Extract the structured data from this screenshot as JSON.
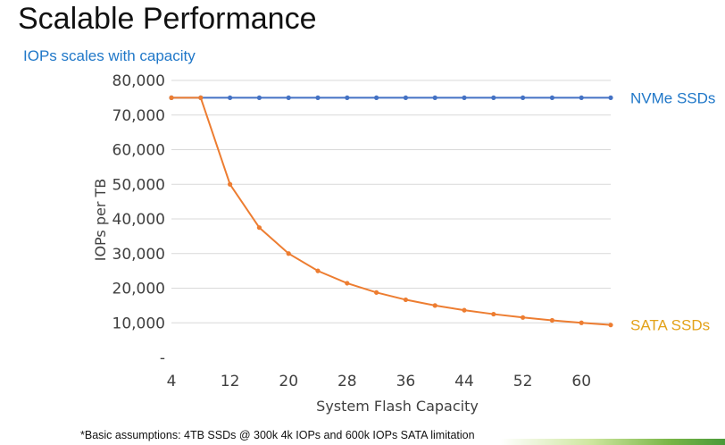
{
  "slide": {
    "title": "Scalable Performance",
    "subtitle": "IOPs scales with capacity",
    "footnote": "*Basic assumptions: 4TB SSDs @ 300k 4k IOPs and 600k IOPs SATA limitation"
  },
  "chart_data": {
    "type": "line",
    "xlabel": "System Flash Capacity",
    "ylabel": "IOPs per TB",
    "xlim": [
      4,
      64
    ],
    "ylim": [
      0,
      80000
    ],
    "x_ticks": [
      4,
      12,
      20,
      28,
      36,
      44,
      52,
      60
    ],
    "y_ticks": [
      {
        "value": 0,
        "label": "-"
      },
      {
        "value": 10000,
        "label": "10,000"
      },
      {
        "value": 20000,
        "label": "20,000"
      },
      {
        "value": 30000,
        "label": "30,000"
      },
      {
        "value": 40000,
        "label": "40,000"
      },
      {
        "value": 50000,
        "label": "50,000"
      },
      {
        "value": 60000,
        "label": "60,000"
      },
      {
        "value": 70000,
        "label": "70,000"
      },
      {
        "value": 80000,
        "label": "80,000"
      }
    ],
    "grid": true,
    "x": [
      4,
      8,
      12,
      16,
      20,
      24,
      28,
      32,
      36,
      40,
      44,
      48,
      52,
      56,
      60,
      64
    ],
    "series": [
      {
        "name": "NVMe SSDs",
        "color": "#4472c4",
        "label_color": "#1f77c8",
        "values": [
          75000,
          75000,
          75000,
          75000,
          75000,
          75000,
          75000,
          75000,
          75000,
          75000,
          75000,
          75000,
          75000,
          75000,
          75000,
          75000
        ]
      },
      {
        "name": "SATA SSDs",
        "color": "#ed7d31",
        "label_color": "#e3a21a",
        "values": [
          75000,
          75000,
          50000,
          37500,
          30000,
          25000,
          21429,
          18750,
          16667,
          15000,
          13636,
          12500,
          11538,
          10714,
          10000,
          9375
        ]
      }
    ]
  }
}
